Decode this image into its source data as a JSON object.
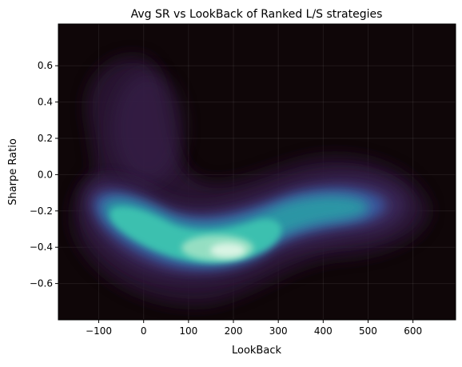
{
  "chart_data": {
    "type": "heatmap",
    "subtype": "kde-density",
    "title": "Avg SR vs LookBack of Ranked L/S strategies",
    "xlabel": "LookBack",
    "ylabel": "Sharpe Ratio",
    "xlim": [
      -190,
      695
    ],
    "ylim": [
      -0.8,
      0.83
    ],
    "xticks": [
      -100,
      0,
      100,
      200,
      300,
      400,
      500,
      600
    ],
    "yticks": [
      -0.6,
      -0.4,
      -0.2,
      0.0,
      0.2,
      0.4,
      0.6
    ],
    "grid": true,
    "colormap": "mako",
    "background_color": "#0f0608",
    "density_peaks": [
      {
        "x": 240,
        "y": -0.41,
        "intensity": 1.0
      },
      {
        "x": 160,
        "y": -0.32,
        "intensity": 0.75
      },
      {
        "x": 95,
        "y": -0.2,
        "intensity": 0.55
      },
      {
        "x": 330,
        "y": -0.24,
        "intensity": 0.45
      },
      {
        "x": 440,
        "y": -0.14,
        "intensity": 0.42
      },
      {
        "x": 10,
        "y": 0.25,
        "intensity": 0.12
      }
    ]
  }
}
